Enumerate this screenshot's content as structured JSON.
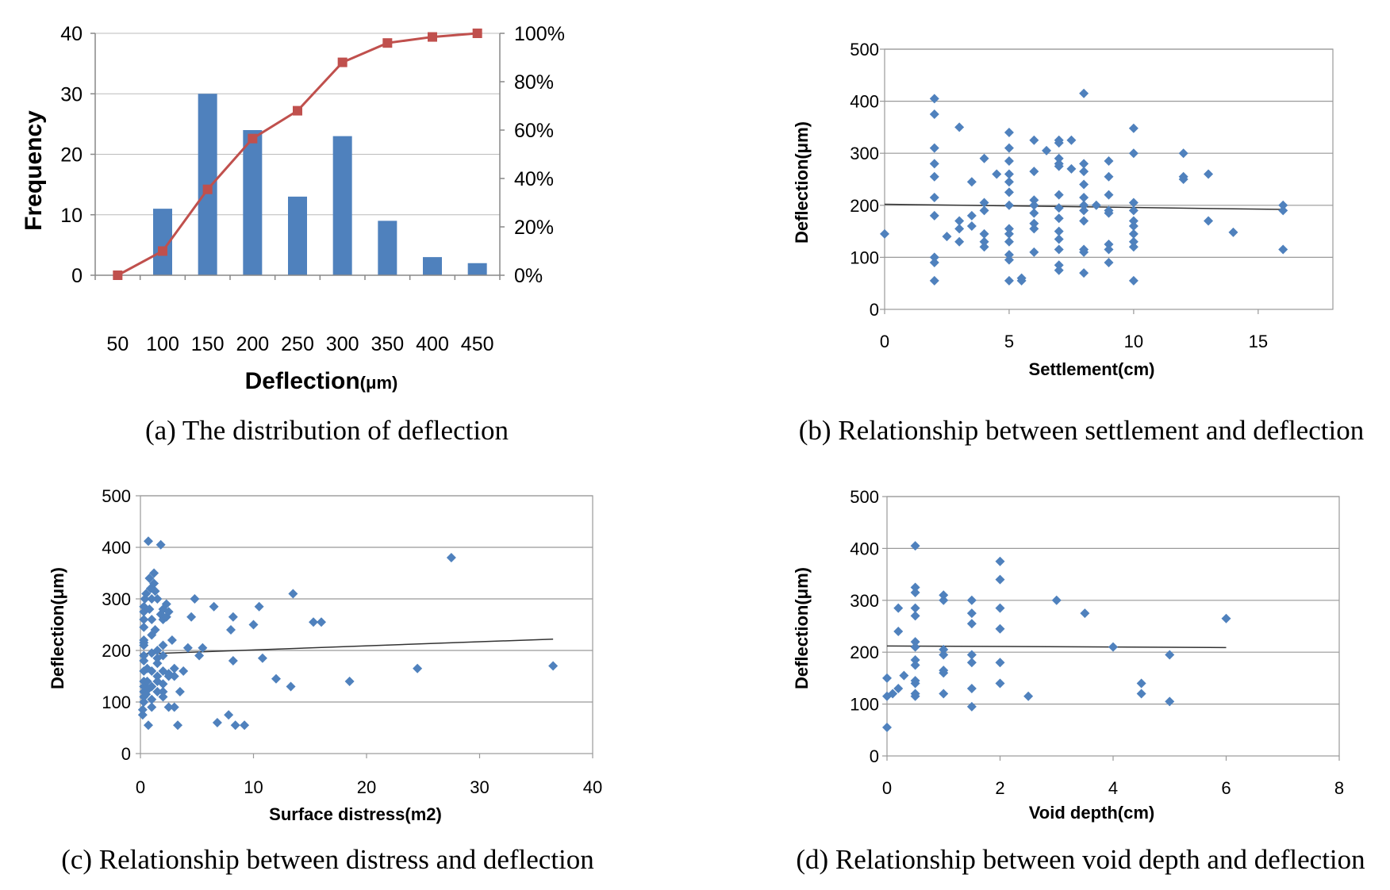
{
  "colors": {
    "bar": "#4f81bd",
    "cumulative": "#c0504d",
    "scatter": "#4f81bd",
    "trend": "#333333",
    "grid": "#999999",
    "axis": "#888888"
  },
  "chart_data": [
    {
      "type": "bar",
      "id": "a",
      "caption": "(a) The distribution of deflection",
      "xlabel_main": "Deflection",
      "xlabel_unit": "(μm)",
      "ylabel": "Frequency",
      "categories": [
        "50",
        "100",
        "150",
        "200",
        "250",
        "300",
        "350",
        "400",
        "450"
      ],
      "series": [
        {
          "name": "Frequency",
          "kind": "bar",
          "values": [
            0,
            11,
            30,
            24,
            13,
            23,
            9,
            3,
            2
          ]
        },
        {
          "name": "Cumulative",
          "kind": "line",
          "values": [
            0,
            10,
            35.5,
            56.5,
            68,
            88,
            96,
            98.5,
            100
          ]
        }
      ],
      "ylim": [
        0,
        40
      ],
      "yticks": [
        0,
        10,
        20,
        30,
        40
      ],
      "y2lim": [
        0,
        100
      ],
      "y2ticks": [
        "0%",
        "20%",
        "40%",
        "60%",
        "80%",
        "100%"
      ]
    },
    {
      "type": "scatter",
      "id": "b",
      "caption": "(b) Relationship between settlement and deflection",
      "xlabel": "Settlement(cm)",
      "ylabel": "Deflection(μm)",
      "xlim": [
        0,
        18
      ],
      "xticks": [
        0,
        5,
        10,
        15
      ],
      "ylim": [
        0,
        500
      ],
      "yticks": [
        0,
        100,
        200,
        300,
        400,
        500
      ],
      "trend": [
        [
          0,
          202
        ],
        [
          16,
          192
        ]
      ],
      "points": [
        [
          0,
          145
        ],
        [
          2,
          405
        ],
        [
          2,
          375
        ],
        [
          2,
          310
        ],
        [
          2,
          280
        ],
        [
          2,
          255
        ],
        [
          2,
          215
        ],
        [
          2,
          180
        ],
        [
          2,
          100
        ],
        [
          2,
          90
        ],
        [
          2,
          55
        ],
        [
          2.5,
          140
        ],
        [
          3,
          350
        ],
        [
          3,
          170
        ],
        [
          3,
          155
        ],
        [
          3,
          130
        ],
        [
          3.5,
          245
        ],
        [
          3.5,
          180
        ],
        [
          3.5,
          160
        ],
        [
          4,
          290
        ],
        [
          4,
          205
        ],
        [
          4,
          190
        ],
        [
          4,
          145
        ],
        [
          4,
          130
        ],
        [
          4,
          120
        ],
        [
          4.5,
          260
        ],
        [
          5,
          340
        ],
        [
          5,
          310
        ],
        [
          5,
          285
        ],
        [
          5,
          260
        ],
        [
          5,
          245
        ],
        [
          5,
          225
        ],
        [
          5,
          200
        ],
        [
          5,
          155
        ],
        [
          5,
          145
        ],
        [
          5,
          130
        ],
        [
          5,
          105
        ],
        [
          5,
          95
        ],
        [
          5,
          55
        ],
        [
          5.5,
          60
        ],
        [
          5.5,
          55
        ],
        [
          6,
          325
        ],
        [
          6,
          265
        ],
        [
          6,
          210
        ],
        [
          6,
          200
        ],
        [
          6,
          185
        ],
        [
          6,
          165
        ],
        [
          6,
          155
        ],
        [
          6,
          110
        ],
        [
          6.5,
          305
        ],
        [
          7,
          325
        ],
        [
          7,
          320
        ],
        [
          7,
          290
        ],
        [
          7,
          280
        ],
        [
          7,
          275
        ],
        [
          7,
          220
        ],
        [
          7,
          195
        ],
        [
          7,
          175
        ],
        [
          7,
          150
        ],
        [
          7,
          135
        ],
        [
          7,
          115
        ],
        [
          7,
          85
        ],
        [
          7,
          75
        ],
        [
          7.5,
          325
        ],
        [
          7.5,
          270
        ],
        [
          8,
          415
        ],
        [
          8,
          280
        ],
        [
          8,
          265
        ],
        [
          8,
          240
        ],
        [
          8,
          215
        ],
        [
          8,
          200
        ],
        [
          8,
          190
        ],
        [
          8,
          170
        ],
        [
          8,
          115
        ],
        [
          8,
          110
        ],
        [
          8,
          70
        ],
        [
          8.5,
          200
        ],
        [
          9,
          285
        ],
        [
          9,
          255
        ],
        [
          9,
          220
        ],
        [
          9,
          190
        ],
        [
          9,
          185
        ],
        [
          9,
          125
        ],
        [
          9,
          115
        ],
        [
          9,
          90
        ],
        [
          10,
          348
        ],
        [
          10,
          300
        ],
        [
          10,
          205
        ],
        [
          10,
          190
        ],
        [
          10,
          170
        ],
        [
          10,
          160
        ],
        [
          10,
          145
        ],
        [
          10,
          130
        ],
        [
          10,
          120
        ],
        [
          10,
          55
        ],
        [
          12,
          300
        ],
        [
          12,
          255
        ],
        [
          12,
          250
        ],
        [
          13,
          260
        ],
        [
          13,
          170
        ],
        [
          14,
          148
        ],
        [
          16,
          200
        ],
        [
          16,
          190
        ],
        [
          16,
          115
        ]
      ]
    },
    {
      "type": "scatter",
      "id": "c",
      "caption": "(c) Relationship between distress and deflection",
      "xlabel": "Surface distress(m2)",
      "ylabel": "Deflection(μm)",
      "xlim": [
        0,
        40
      ],
      "xticks": [
        0,
        10,
        20,
        30,
        40
      ],
      "ylim": [
        0,
        500
      ],
      "yticks": [
        0,
        100,
        200,
        300,
        400,
        500
      ],
      "trend": [
        [
          0,
          193
        ],
        [
          36.5,
          222
        ]
      ],
      "points": [
        [
          0.2,
          75
        ],
        [
          0.2,
          85
        ],
        [
          0.3,
          100
        ],
        [
          0.3,
          110
        ],
        [
          0.3,
          120
        ],
        [
          0.3,
          130
        ],
        [
          0.3,
          140
        ],
        [
          0.3,
          160
        ],
        [
          0.3,
          180
        ],
        [
          0.3,
          190
        ],
        [
          0.3,
          210
        ],
        [
          0.3,
          215
        ],
        [
          0.3,
          220
        ],
        [
          0.3,
          245
        ],
        [
          0.3,
          260
        ],
        [
          0.3,
          275
        ],
        [
          0.3,
          285
        ],
        [
          0.4,
          300
        ],
        [
          0.5,
          310
        ],
        [
          0.5,
          115
        ],
        [
          0.6,
          140
        ],
        [
          0.6,
          165
        ],
        [
          0.7,
          125
        ],
        [
          0.7,
          55
        ],
        [
          0.7,
          412
        ],
        [
          0.8,
          340
        ],
        [
          0.8,
          280
        ],
        [
          0.9,
          320
        ],
        [
          1,
          300
        ],
        [
          1,
          260
        ],
        [
          1,
          230
        ],
        [
          1,
          195
        ],
        [
          1,
          160
        ],
        [
          1,
          130
        ],
        [
          1,
          105
        ],
        [
          1,
          90
        ],
        [
          1.2,
          350
        ],
        [
          1.2,
          330
        ],
        [
          1.3,
          315
        ],
        [
          1.3,
          240
        ],
        [
          1.5,
          300
        ],
        [
          1.5,
          200
        ],
        [
          1.5,
          185
        ],
        [
          1.5,
          175
        ],
        [
          1.5,
          150
        ],
        [
          1.5,
          140
        ],
        [
          1.5,
          120
        ],
        [
          1.8,
          405
        ],
        [
          1.8,
          270
        ],
        [
          2,
          280
        ],
        [
          2,
          260
        ],
        [
          2,
          210
        ],
        [
          2,
          190
        ],
        [
          2,
          160
        ],
        [
          2,
          135
        ],
        [
          2,
          120
        ],
        [
          2,
          110
        ],
        [
          2.3,
          290
        ],
        [
          2.3,
          265
        ],
        [
          2.5,
          275
        ],
        [
          2.5,
          155
        ],
        [
          2.5,
          150
        ],
        [
          2.5,
          90
        ],
        [
          2.8,
          220
        ],
        [
          3,
          165
        ],
        [
          3,
          150
        ],
        [
          3,
          90
        ],
        [
          3.3,
          55
        ],
        [
          3.5,
          120
        ],
        [
          3.8,
          160
        ],
        [
          4.2,
          205
        ],
        [
          4.5,
          265
        ],
        [
          4.8,
          300
        ],
        [
          5.2,
          190
        ],
        [
          5.5,
          205
        ],
        [
          6.5,
          285
        ],
        [
          6.8,
          60
        ],
        [
          7.8,
          75
        ],
        [
          8,
          240
        ],
        [
          8.2,
          180
        ],
        [
          8.2,
          265
        ],
        [
          8.4,
          55
        ],
        [
          9.2,
          55
        ],
        [
          10,
          250
        ],
        [
          10.5,
          285
        ],
        [
          10.8,
          185
        ],
        [
          12,
          145
        ],
        [
          13.3,
          130
        ],
        [
          13.5,
          310
        ],
        [
          15.3,
          255
        ],
        [
          16,
          255
        ],
        [
          18.5,
          140
        ],
        [
          24.5,
          165
        ],
        [
          27.5,
          380
        ],
        [
          36.5,
          170
        ]
      ]
    },
    {
      "type": "scatter",
      "id": "d",
      "caption": "(d) Relationship between void depth and deflection",
      "xlabel": "Void depth(cm)",
      "ylabel": "Deflection(μm)",
      "xlim": [
        0,
        8
      ],
      "xticks": [
        0,
        2,
        4,
        6,
        8
      ],
      "ylim": [
        0,
        500
      ],
      "yticks": [
        0,
        100,
        200,
        300,
        400,
        500
      ],
      "trend": [
        [
          0,
          212
        ],
        [
          6,
          209
        ]
      ],
      "points": [
        [
          0,
          150
        ],
        [
          0,
          115
        ],
        [
          0,
          55
        ],
        [
          0.1,
          120
        ],
        [
          0.2,
          130
        ],
        [
          0.2,
          285
        ],
        [
          0.2,
          240
        ],
        [
          0.3,
          155
        ],
        [
          0.5,
          405
        ],
        [
          0.5,
          325
        ],
        [
          0.5,
          315
        ],
        [
          0.5,
          285
        ],
        [
          0.5,
          270
        ],
        [
          0.5,
          220
        ],
        [
          0.5,
          210
        ],
        [
          0.5,
          185
        ],
        [
          0.5,
          175
        ],
        [
          0.5,
          145
        ],
        [
          0.5,
          140
        ],
        [
          0.5,
          120
        ],
        [
          0.5,
          115
        ],
        [
          1,
          310
        ],
        [
          1,
          300
        ],
        [
          1,
          205
        ],
        [
          1,
          195
        ],
        [
          1,
          165
        ],
        [
          1,
          160
        ],
        [
          1,
          120
        ],
        [
          1.5,
          300
        ],
        [
          1.5,
          275
        ],
        [
          1.5,
          255
        ],
        [
          1.5,
          195
        ],
        [
          1.5,
          180
        ],
        [
          1.5,
          130
        ],
        [
          1.5,
          95
        ],
        [
          2,
          375
        ],
        [
          2,
          340
        ],
        [
          2,
          285
        ],
        [
          2,
          245
        ],
        [
          2,
          180
        ],
        [
          2,
          140
        ],
        [
          2.5,
          115
        ],
        [
          3,
          300
        ],
        [
          3.5,
          275
        ],
        [
          4,
          210
        ],
        [
          4.5,
          140
        ],
        [
          4.5,
          120
        ],
        [
          5,
          195
        ],
        [
          5,
          105
        ],
        [
          6,
          265
        ]
      ]
    }
  ]
}
